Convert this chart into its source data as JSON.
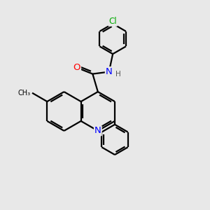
{
  "bg_color": "#e8e8e8",
  "bond_color": "#000000",
  "line_width": 1.6,
  "atom_colors": {
    "N": "#0000ff",
    "O": "#ff0000",
    "Cl": "#00aa00",
    "C": "#000000",
    "H": "#555555"
  },
  "font_size": 8.5,
  "xlim": [
    0,
    10
  ],
  "ylim": [
    0,
    10
  ]
}
